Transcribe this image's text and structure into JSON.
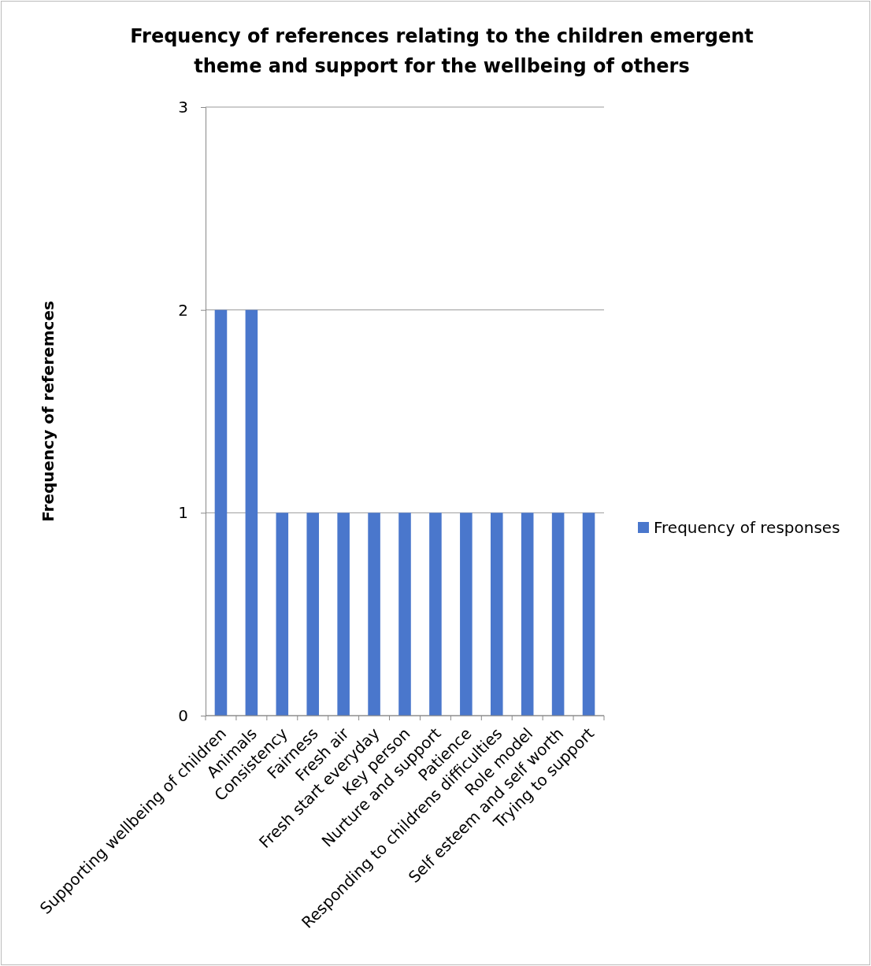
{
  "chart_data": {
    "type": "bar",
    "title": "Frequency of references relating to the children emergent theme and support for the wellbeing of others",
    "ylabel": "Frequency of referemces",
    "categories": [
      "Supporting wellbeing of children",
      "Animals",
      "Consistency",
      "Fairness",
      "Fresh air",
      "Fresh start everyday",
      "Key person",
      "Nurture and support",
      "Patience",
      "Responding to childrens difficulties",
      "Role model",
      "Self esteem and self worth",
      "Trying to support"
    ],
    "series": [
      {
        "name": "Frequency of responses",
        "color": "#4a77cc",
        "values": [
          2,
          2,
          1,
          1,
          1,
          1,
          1,
          1,
          1,
          1,
          1,
          1,
          1
        ]
      }
    ],
    "ylim": [
      0,
      3
    ],
    "yticks": [
      0,
      1,
      2,
      3
    ],
    "grid": "y",
    "legend": "right"
  }
}
